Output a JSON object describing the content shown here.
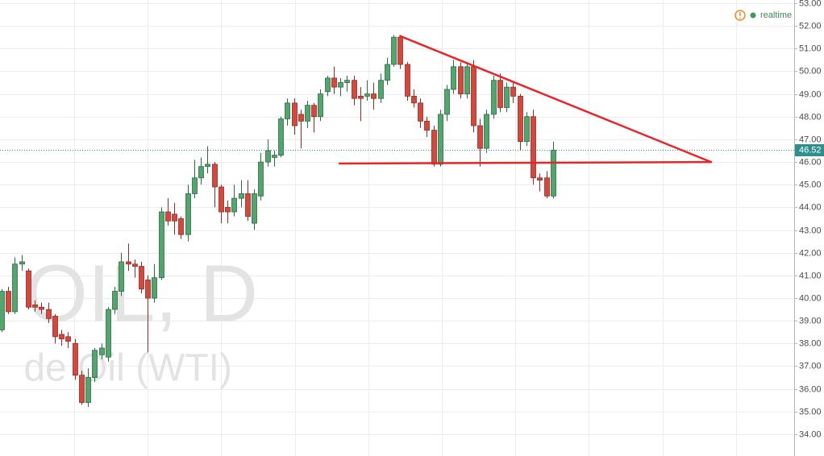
{
  "chart_data": {
    "type": "candlestick",
    "watermark": [
      "OIL, D",
      "de Oil (WTI)"
    ],
    "status": "realtime",
    "up_color": "#53a46f",
    "down_color": "#d4493e",
    "open": [
      38.6,
      40.3,
      39.4,
      41.5,
      41.2,
      39.7,
      39.6,
      39.5,
      39.2,
      38.4,
      38.3,
      38.0,
      36.6,
      35.4,
      36.5,
      37.5,
      37.4,
      39.5,
      40.3,
      41.6,
      41.5,
      41.4,
      40.8,
      40.0,
      40.9,
      43.8,
      43.7,
      43.5,
      42.8,
      44.6,
      45.3,
      45.8,
      45.9,
      44.9,
      44.0,
      43.8,
      44.4,
      44.6,
      43.3,
      44.5,
      46.0,
      46.2,
      46.3,
      47.9,
      48.6,
      48.1,
      47.8,
      48.5,
      48.0,
      49.1,
      49.7,
      49.3,
      49.5,
      49.6,
      48.9,
      48.9,
      49.0,
      48.8,
      49.6,
      50.3,
      51.5,
      50.3,
      48.9,
      48.6,
      47.8,
      47.4,
      45.9,
      48.1,
      49.2,
      50.2,
      49.0,
      50.2,
      47.6,
      46.6,
      48.1,
      49.6,
      48.4,
      49.3,
      48.9,
      46.9,
      48.0,
      45.3,
      45.3,
      44.5
    ],
    "high": [
      40.4,
      40.5,
      41.8,
      41.9,
      41.3,
      39.9,
      39.8,
      39.8,
      39.3,
      38.6,
      38.5,
      38.2,
      36.8,
      36.9,
      37.8,
      38.0,
      39.6,
      40.5,
      42.0,
      42.4,
      41.7,
      41.6,
      41.0,
      41.5,
      44.0,
      44.4,
      44.2,
      43.6,
      45.0,
      46.1,
      46.2,
      46.7,
      46.0,
      45.0,
      44.3,
      45.0,
      45.2,
      45.2,
      44.8,
      46.4,
      47.0,
      46.5,
      48.0,
      48.8,
      48.8,
      48.3,
      48.7,
      48.6,
      49.2,
      49.8,
      50.2,
      49.7,
      49.8,
      49.8,
      49.3,
      49.6,
      49.5,
      49.9,
      50.6,
      51.6,
      51.6,
      50.4,
      49.2,
      48.8,
      48.0,
      47.6,
      48.3,
      49.4,
      50.5,
      50.4,
      50.4,
      50.5,
      47.9,
      48.3,
      49.8,
      49.9,
      49.5,
      49.5,
      49.0,
      48.2,
      48.3,
      45.5,
      45.6,
      46.9
    ],
    "low": [
      38.5,
      39.3,
      39.3,
      41.2,
      39.5,
      39.4,
      39.3,
      38.9,
      38.0,
      37.9,
      37.8,
      36.4,
      35.3,
      35.2,
      36.3,
      37.3,
      37.2,
      39.3,
      40.1,
      41.2,
      40.9,
      40.2,
      37.6,
      39.8,
      40.8,
      43.2,
      42.8,
      42.6,
      42.5,
      44.4,
      45.0,
      45.5,
      44.0,
      43.3,
      43.3,
      43.6,
      44.0,
      43.4,
      43.0,
      44.3,
      45.8,
      45.8,
      46.2,
      47.6,
      47.2,
      46.6,
      47.5,
      47.3,
      47.8,
      48.9,
      49.0,
      48.9,
      49.1,
      48.5,
      47.8,
      48.7,
      48.3,
      48.6,
      49.4,
      50.2,
      50.1,
      48.7,
      48.4,
      47.5,
      47.1,
      45.8,
      45.8,
      47.8,
      49.0,
      48.8,
      48.8,
      47.3,
      45.8,
      46.4,
      47.9,
      48.2,
      48.2,
      48.6,
      46.5,
      46.7,
      45.0,
      44.7,
      44.4,
      44.4
    ],
    "close": [
      40.3,
      39.4,
      41.5,
      41.6,
      39.6,
      39.6,
      39.5,
      39.1,
      38.3,
      38.2,
      38.1,
      36.6,
      35.4,
      36.5,
      37.7,
      37.8,
      39.5,
      40.3,
      41.6,
      41.5,
      41.4,
      40.4,
      40.0,
      40.9,
      43.8,
      43.4,
      43.4,
      42.8,
      44.6,
      45.3,
      45.8,
      45.9,
      44.9,
      43.8,
      43.8,
      44.4,
      44.6,
      43.6,
      44.6,
      46.0,
      46.5,
      46.3,
      47.9,
      48.6,
      47.6,
      47.8,
      48.5,
      48.0,
      49.0,
      49.7,
      49.3,
      49.5,
      49.6,
      48.8,
      48.8,
      49.0,
      48.8,
      49.6,
      50.3,
      51.5,
      50.3,
      48.9,
      48.6,
      47.8,
      47.4,
      45.9,
      48.1,
      49.2,
      50.2,
      49.0,
      50.2,
      47.6,
      46.6,
      48.1,
      49.6,
      48.4,
      49.3,
      48.9,
      46.9,
      48.0,
      45.3,
      45.2,
      44.5,
      46.52
    ],
    "last_price": 46.52,
    "last_price_color": "#2f8f8f",
    "trendlines": [
      {
        "color": "#e8262a",
        "x": [
          60,
          106.8
        ],
        "y": [
          51.55,
          46.0
        ]
      },
      {
        "color": "#e8262a",
        "x": [
          50.85,
          106.8
        ],
        "y": [
          45.93,
          46.0
        ]
      }
    ],
    "xlim": [
      -0.24,
      119.3
    ],
    "ylim": [
      33.04,
      53.14
    ],
    "yticks": [
      {
        "value": 34,
        "label": "34.00"
      },
      {
        "value": 35,
        "label": "35.00"
      },
      {
        "value": 36,
        "label": "36.00"
      },
      {
        "value": 37,
        "label": "37.00"
      },
      {
        "value": 38,
        "label": "38.00"
      },
      {
        "value": 39,
        "label": "39.00"
      },
      {
        "value": 40,
        "label": "40.00"
      },
      {
        "value": 41,
        "label": "41.00"
      },
      {
        "value": 42,
        "label": "42.00"
      },
      {
        "value": 43,
        "label": "43.00"
      },
      {
        "value": 44,
        "label": "44.00"
      },
      {
        "value": 45,
        "label": "45.00"
      },
      {
        "value": 46,
        "label": "46.00"
      },
      {
        "value": 47,
        "label": "47.00"
      },
      {
        "value": 48,
        "label": "48.00"
      },
      {
        "value": 49,
        "label": "49.00"
      },
      {
        "value": 50,
        "label": "50.00"
      },
      {
        "value": 51,
        "label": "51.00"
      },
      {
        "value": 52,
        "label": "52.00"
      },
      {
        "value": 53,
        "label": "53.00"
      }
    ],
    "grid": true
  }
}
